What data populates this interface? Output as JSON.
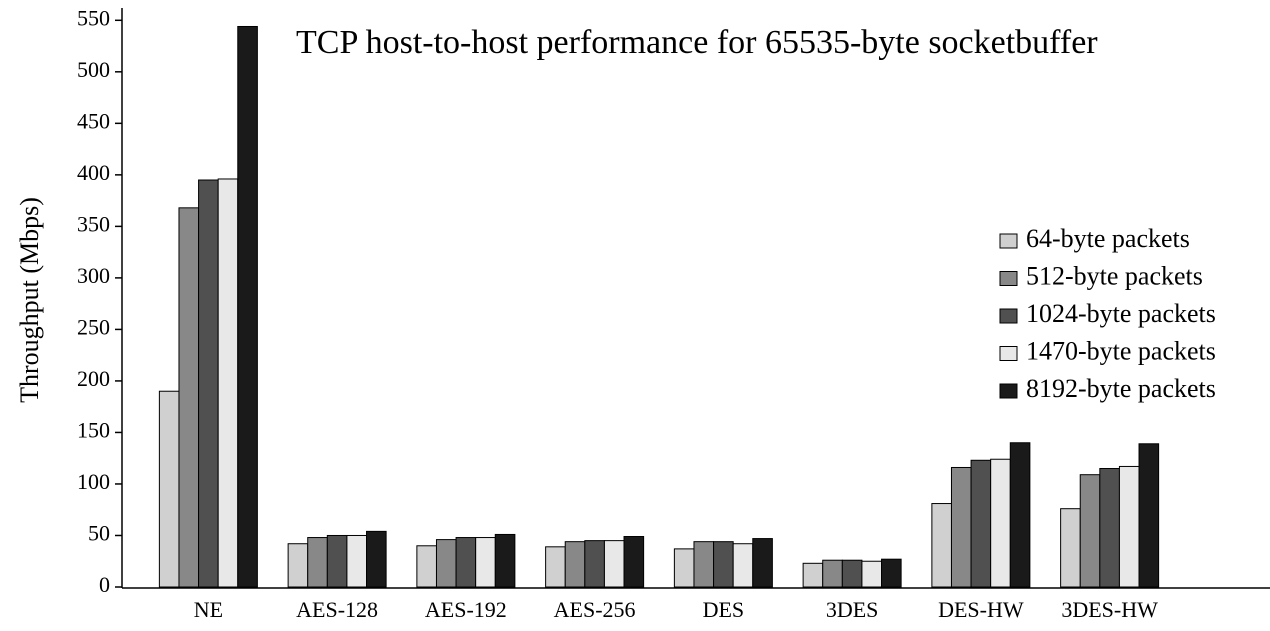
{
  "chart_data": {
    "type": "bar",
    "title": "TCP host-to-host performance for 65535-byte socketbuffer",
    "y_label": "Throughput (Mbps)",
    "categories": [
      "NE",
      "AES-128",
      "AES-192",
      "AES-256",
      "DES",
      "3DES",
      "DES-HW",
      "3DES-HW"
    ],
    "series": [
      {
        "name": "64-byte packets",
        "color": "#d0d0d0",
        "values": [
          190,
          42,
          40,
          39,
          37,
          23,
          81,
          76
        ]
      },
      {
        "name": "512-byte packets",
        "color": "#888888",
        "values": [
          368,
          48,
          46,
          44,
          44,
          26,
          116,
          109
        ]
      },
      {
        "name": "1024-byte packets",
        "color": "#505050",
        "values": [
          395,
          50,
          48,
          45,
          44,
          26,
          123,
          115
        ]
      },
      {
        "name": "1470-byte packets",
        "color": "#e8e8e8",
        "values": [
          396,
          50,
          48,
          45,
          42,
          25,
          124,
          117
        ]
      },
      {
        "name": "8192-byte packets",
        "color": "#1a1a1a",
        "values": [
          544,
          54,
          51,
          49,
          47,
          27,
          140,
          139
        ]
      }
    ],
    "ylim": [
      0,
      560
    ],
    "yticks": [
      0,
      50,
      100,
      150,
      200,
      250,
      300,
      350,
      400,
      450,
      500,
      550
    ],
    "grid": false,
    "legend": "right"
  }
}
